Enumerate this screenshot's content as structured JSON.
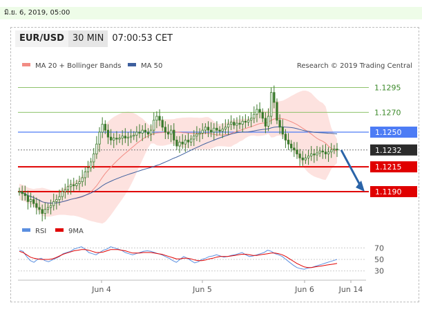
{
  "date_header": "มิ.ย. 6, 2019, 05:00",
  "header": {
    "pair": "EUR/USD",
    "timeframe": "30 MIN",
    "time": "07:00:53 CET"
  },
  "colors": {
    "level_green": "#8dc26a",
    "pivot_blue": "#4d7cf5",
    "resistance_red": "#e00000",
    "current_price": "#2b2b2b",
    "arrow": "#2a64a8",
    "candle": "#3a7a2c",
    "band_fill": "#fde2df",
    "ma20": "#f28c84",
    "ma50": "#3e5f9e",
    "rsi": "#5b8fe0",
    "rsi_ma": "#e00000"
  },
  "chart_data": {
    "type": "line",
    "title": "EUR/USD",
    "timeframe": "30 MIN",
    "legend": [
      {
        "name": "MA 20 + Bollinger Bands",
        "color": "#f28c84"
      },
      {
        "name": "MA 50",
        "color": "#3e5f9e"
      }
    ],
    "source": "Research © 2019 Trading Central",
    "x_ticks": [
      "Jun 4",
      "Jun 5",
      "Jun 6",
      "Jun 14"
    ],
    "horizontal_levels": [
      {
        "label": "1.1295",
        "value": 1.1295,
        "kind": "green"
      },
      {
        "label": "1.1270",
        "value": 1.127,
        "kind": "green"
      },
      {
        "label": "1.1250",
        "value": 1.125,
        "kind": "blue"
      },
      {
        "label": "1.1232",
        "value": 1.1232,
        "kind": "current"
      },
      {
        "label": "1.1215",
        "value": 1.1215,
        "kind": "red"
      },
      {
        "label": "1.1190",
        "value": 1.119,
        "kind": "red"
      }
    ],
    "close_series": [
      1.119,
      1.1188,
      1.1186,
      1.118,
      1.1182,
      1.1178,
      1.1174,
      1.1172,
      1.1168,
      1.1172,
      1.1174,
      1.1176,
      1.118,
      1.1182,
      1.1185,
      1.119,
      1.1192,
      1.1195,
      1.1197,
      1.1196,
      1.1198,
      1.12,
      1.1204,
      1.121,
      1.1214,
      1.122,
      1.1228,
      1.1238,
      1.125,
      1.1258,
      1.1252,
      1.1245,
      1.1242,
      1.1244,
      1.1243,
      1.1244,
      1.1246,
      1.1244,
      1.1245,
      1.1246,
      1.1247,
      1.125,
      1.1249,
      1.1252,
      1.125,
      1.1248,
      1.1252,
      1.1262,
      1.1266,
      1.1262,
      1.1255,
      1.125,
      1.1248,
      1.1252,
      1.1242,
      1.1236,
      1.124,
      1.1238,
      1.1242,
      1.124,
      1.1243,
      1.1246,
      1.1248,
      1.1249,
      1.1252,
      1.1255,
      1.1252,
      1.125,
      1.1254,
      1.1252,
      1.1251,
      1.1253,
      1.1255,
      1.1258,
      1.126,
      1.1257,
      1.1259,
      1.1258,
      1.1261,
      1.126,
      1.1262,
      1.1264,
      1.1268,
      1.1273,
      1.127,
      1.1264,
      1.1256,
      1.1266,
      1.129,
      1.128,
      1.1262,
      1.1255,
      1.1248,
      1.1242,
      1.1238,
      1.1234,
      1.1232,
      1.1228,
      1.1224,
      1.1222,
      1.1224,
      1.1226,
      1.1228,
      1.1227,
      1.1229,
      1.1231,
      1.123,
      1.1228,
      1.123,
      1.1232,
      1.1233,
      1.1232
    ],
    "y_range": [
      1.116,
      1.131
    ],
    "indicator": {
      "legend": [
        {
          "name": "RSI",
          "color": "#5b8fe0"
        },
        {
          "name": "9MA",
          "color": "#e00000"
        }
      ],
      "levels": [
        70,
        50,
        30
      ],
      "y_range": [
        20,
        80
      ],
      "rsi": [
        66,
        64,
        55,
        48,
        45,
        50,
        52,
        48,
        46,
        49,
        52,
        55,
        60,
        62,
        64,
        68,
        70,
        72,
        68,
        62,
        60,
        58,
        62,
        66,
        68,
        72,
        70,
        68,
        66,
        62,
        60,
        58,
        60,
        62,
        64,
        65,
        64,
        62,
        60,
        58,
        55,
        52,
        48,
        45,
        50,
        55,
        52,
        48,
        44,
        46,
        50,
        52,
        55,
        56,
        58,
        56,
        54,
        55,
        57,
        58,
        60,
        62,
        58,
        55,
        56,
        58,
        60,
        62,
        66,
        64,
        60,
        58,
        55,
        50,
        45,
        40,
        36,
        34,
        33,
        35,
        36,
        38,
        40,
        42,
        44,
        46,
        48,
        50
      ],
      "rsi_ma": [
        64,
        62,
        58,
        54,
        52,
        51,
        50,
        50,
        50,
        51,
        53,
        56,
        59,
        61,
        63,
        65,
        66,
        67,
        67,
        66,
        64,
        62,
        62,
        63,
        65,
        67,
        67,
        67,
        66,
        65,
        63,
        61,
        61,
        61,
        62,
        62,
        62,
        61,
        60,
        59,
        57,
        55,
        53,
        51,
        51,
        52,
        52,
        51,
        49,
        48,
        48,
        49,
        51,
        52,
        54,
        55,
        55,
        55,
        56,
        57,
        58,
        59,
        59,
        58,
        57,
        57,
        58,
        59,
        60,
        61,
        61,
        60,
        58,
        55,
        51,
        47,
        43,
        40,
        37,
        36,
        36,
        37,
        38,
        39,
        40,
        41,
        42,
        43
      ]
    }
  }
}
